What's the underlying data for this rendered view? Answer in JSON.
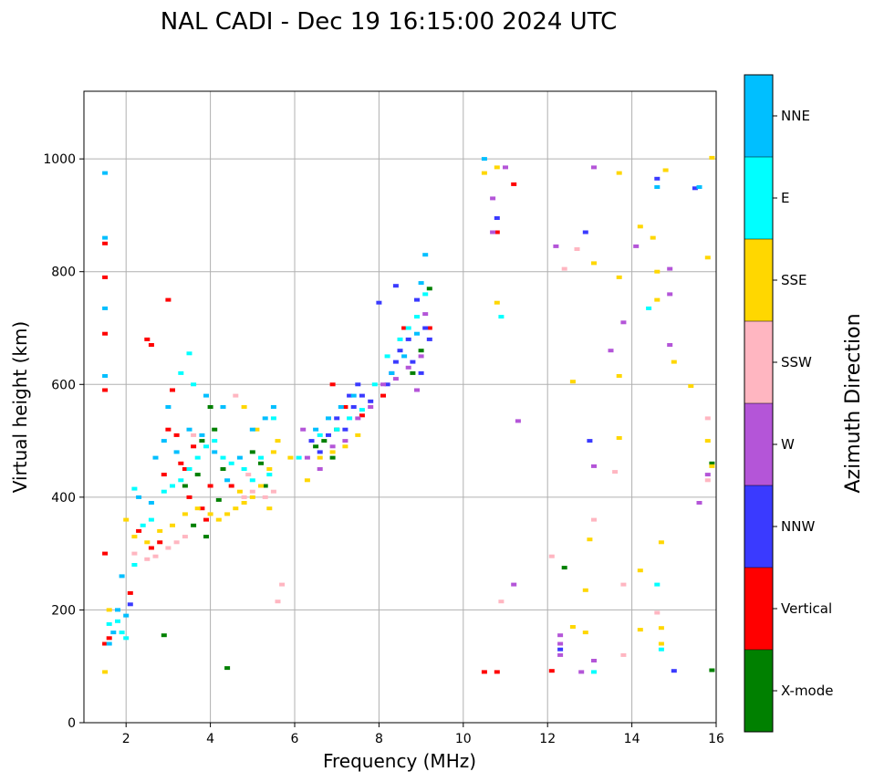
{
  "chart_data": {
    "type": "scatter",
    "title": "NAL CADI - Dec 19 16:15:00 2024 UTC",
    "xlabel": "Frequency (MHz)",
    "ylabel": "Virtual height (km)",
    "xlim": [
      1,
      16
    ],
    "ylim": [
      0,
      1120
    ],
    "xticks": [
      2,
      4,
      6,
      8,
      10,
      12,
      14,
      16
    ],
    "yticks": [
      0,
      200,
      400,
      600,
      800,
      1000
    ],
    "grid": true,
    "colorbar": {
      "title": "Azimuth Direction",
      "categories": [
        {
          "label": "X-mode",
          "color": "#008000"
        },
        {
          "label": "Vertical",
          "color": "#ff0000"
        },
        {
          "label": "NNW",
          "color": "#3a3aff"
        },
        {
          "label": "W",
          "color": "#b455d8"
        },
        {
          "label": "SSW",
          "color": "#ffb6c1"
        },
        {
          "label": "SSE",
          "color": "#ffd700"
        },
        {
          "label": "E",
          "color": "#00ffff"
        },
        {
          "label": "NNE",
          "color": "#00bfff"
        }
      ]
    },
    "series": [
      {
        "name": "X-mode",
        "points": [
          [
            2.9,
            155
          ],
          [
            4.4,
            97
          ],
          [
            3.7,
            440
          ],
          [
            4.1,
            520
          ],
          [
            4.2,
            395
          ],
          [
            3.6,
            350
          ],
          [
            3.9,
            330
          ],
          [
            5.0,
            480
          ],
          [
            5.3,
            420
          ],
          [
            6.5,
            490
          ],
          [
            6.7,
            500
          ],
          [
            7.0,
            520
          ],
          [
            8.8,
            620
          ],
          [
            9.0,
            660
          ],
          [
            9.2,
            770
          ],
          [
            15.9,
            460
          ],
          [
            15.9,
            93
          ],
          [
            12.4,
            275
          ],
          [
            4.0,
            560
          ],
          [
            3.8,
            500
          ],
          [
            4.3,
            450
          ],
          [
            3.4,
            420
          ],
          [
            5.2,
            460
          ],
          [
            6.9,
            470
          ]
        ]
      },
      {
        "name": "Vertical",
        "points": [
          [
            1.5,
            850
          ],
          [
            1.5,
            790
          ],
          [
            1.5,
            690
          ],
          [
            1.5,
            590
          ],
          [
            1.5,
            300
          ],
          [
            1.6,
            150
          ],
          [
            1.5,
            140
          ],
          [
            2.1,
            230
          ],
          [
            2.3,
            340
          ],
          [
            2.6,
            310
          ],
          [
            2.8,
            320
          ],
          [
            3.0,
            520
          ],
          [
            3.1,
            590
          ],
          [
            3.2,
            510
          ],
          [
            3.3,
            460
          ],
          [
            3.4,
            450
          ],
          [
            3.6,
            490
          ],
          [
            3.8,
            380
          ],
          [
            3.9,
            360
          ],
          [
            4.0,
            420
          ],
          [
            2.5,
            680
          ],
          [
            2.6,
            670
          ],
          [
            3.0,
            750
          ],
          [
            2.9,
            440
          ],
          [
            3.5,
            400
          ],
          [
            6.9,
            600
          ],
          [
            7.2,
            560
          ],
          [
            7.6,
            545
          ],
          [
            8.1,
            580
          ],
          [
            8.6,
            700
          ],
          [
            9.2,
            700
          ],
          [
            10.5,
            90
          ],
          [
            10.8,
            90
          ],
          [
            10.8,
            870
          ],
          [
            11.2,
            955
          ],
          [
            12.1,
            92
          ],
          [
            4.5,
            420
          ]
        ]
      },
      {
        "name": "NNW",
        "points": [
          [
            2.1,
            210
          ],
          [
            6.4,
            500
          ],
          [
            6.6,
            480
          ],
          [
            6.8,
            510
          ],
          [
            7.0,
            540
          ],
          [
            7.2,
            520
          ],
          [
            7.4,
            560
          ],
          [
            7.6,
            580
          ],
          [
            7.8,
            570
          ],
          [
            8.2,
            600
          ],
          [
            8.3,
            620
          ],
          [
            8.4,
            640
          ],
          [
            8.5,
            660
          ],
          [
            8.7,
            680
          ],
          [
            8.8,
            640
          ],
          [
            9.0,
            620
          ],
          [
            9.1,
            700
          ],
          [
            9.2,
            680
          ],
          [
            8.4,
            775
          ],
          [
            8.9,
            750
          ],
          [
            8.0,
            745
          ],
          [
            10.8,
            895
          ],
          [
            12.9,
            870
          ],
          [
            13.0,
            500
          ],
          [
            14.6,
            965
          ],
          [
            15.5,
            948
          ],
          [
            15.0,
            92
          ],
          [
            12.3,
            130
          ],
          [
            7.3,
            580
          ],
          [
            7.5,
            600
          ]
        ]
      },
      {
        "name": "W",
        "points": [
          [
            6.3,
            470
          ],
          [
            6.6,
            450
          ],
          [
            6.9,
            490
          ],
          [
            7.2,
            500
          ],
          [
            7.5,
            540
          ],
          [
            7.8,
            560
          ],
          [
            8.1,
            600
          ],
          [
            8.4,
            610
          ],
          [
            8.7,
            630
          ],
          [
            9.0,
            650
          ],
          [
            9.1,
            725
          ],
          [
            8.9,
            590
          ],
          [
            10.7,
            930
          ],
          [
            10.7,
            870
          ],
          [
            11.0,
            985
          ],
          [
            11.3,
            535
          ],
          [
            12.2,
            845
          ],
          [
            12.3,
            120
          ],
          [
            12.3,
            140
          ],
          [
            12.8,
            90
          ],
          [
            13.1,
            110
          ],
          [
            13.1,
            455
          ],
          [
            13.1,
            985
          ],
          [
            13.8,
            710
          ],
          [
            14.1,
            845
          ],
          [
            14.9,
            760
          ],
          [
            14.9,
            670
          ],
          [
            14.9,
            805
          ],
          [
            15.6,
            390
          ],
          [
            15.8,
            440
          ],
          [
            6.2,
            520
          ],
          [
            11.2,
            245
          ],
          [
            12.3,
            155
          ],
          [
            13.5,
            660
          ]
        ]
      },
      {
        "name": "SSW",
        "points": [
          [
            2.2,
            300
          ],
          [
            2.5,
            290
          ],
          [
            2.7,
            295
          ],
          [
            3.0,
            310
          ],
          [
            3.2,
            320
          ],
          [
            3.4,
            330
          ],
          [
            4.8,
            400
          ],
          [
            5.0,
            410
          ],
          [
            5.3,
            400
          ],
          [
            5.5,
            410
          ],
          [
            4.6,
            580
          ],
          [
            5.6,
            215
          ],
          [
            5.7,
            245
          ],
          [
            10.9,
            215
          ],
          [
            12.1,
            295
          ],
          [
            12.4,
            805
          ],
          [
            12.7,
            840
          ],
          [
            13.1,
            360
          ],
          [
            13.6,
            445
          ],
          [
            13.8,
            245
          ],
          [
            13.8,
            120
          ],
          [
            14.6,
            195
          ],
          [
            15.8,
            540
          ],
          [
            15.8,
            430
          ],
          [
            3.6,
            510
          ],
          [
            4.9,
            440
          ]
        ]
      },
      {
        "name": "SSE",
        "points": [
          [
            1.5,
            90
          ],
          [
            1.6,
            200
          ],
          [
            2.0,
            360
          ],
          [
            2.2,
            330
          ],
          [
            2.5,
            320
          ],
          [
            2.8,
            340
          ],
          [
            3.1,
            350
          ],
          [
            3.4,
            370
          ],
          [
            3.7,
            380
          ],
          [
            4.0,
            370
          ],
          [
            4.2,
            360
          ],
          [
            4.4,
            370
          ],
          [
            4.6,
            380
          ],
          [
            4.8,
            390
          ],
          [
            5.0,
            400
          ],
          [
            5.2,
            420
          ],
          [
            5.4,
            450
          ],
          [
            5.5,
            480
          ],
          [
            5.6,
            500
          ],
          [
            5.4,
            380
          ],
          [
            4.8,
            560
          ],
          [
            4.7,
            410
          ],
          [
            6.3,
            430
          ],
          [
            6.6,
            470
          ],
          [
            6.9,
            480
          ],
          [
            7.2,
            490
          ],
          [
            7.5,
            510
          ],
          [
            10.5,
            975
          ],
          [
            10.8,
            985
          ],
          [
            10.8,
            745
          ],
          [
            12.6,
            605
          ],
          [
            12.6,
            170
          ],
          [
            12.9,
            160
          ],
          [
            12.9,
            235
          ],
          [
            13.0,
            325
          ],
          [
            13.1,
            815
          ],
          [
            13.7,
            975
          ],
          [
            13.7,
            790
          ],
          [
            13.7,
            615
          ],
          [
            13.7,
            505
          ],
          [
            14.2,
            880
          ],
          [
            14.5,
            860
          ],
          [
            14.6,
            800
          ],
          [
            14.6,
            750
          ],
          [
            14.7,
            168
          ],
          [
            14.7,
            140
          ],
          [
            14.7,
            320
          ],
          [
            14.8,
            980
          ],
          [
            15.0,
            640
          ],
          [
            15.4,
            597
          ],
          [
            15.8,
            825
          ],
          [
            15.8,
            500
          ],
          [
            15.9,
            455
          ],
          [
            15.9,
            1002
          ],
          [
            14.2,
            165
          ],
          [
            14.2,
            270
          ],
          [
            5.9,
            470
          ],
          [
            5.1,
            520
          ]
        ]
      },
      {
        "name": "E",
        "points": [
          [
            1.6,
            175
          ],
          [
            1.8,
            180
          ],
          [
            1.9,
            160
          ],
          [
            2.0,
            150
          ],
          [
            2.2,
            280
          ],
          [
            2.4,
            350
          ],
          [
            2.6,
            360
          ],
          [
            2.9,
            410
          ],
          [
            3.1,
            420
          ],
          [
            3.3,
            430
          ],
          [
            3.5,
            450
          ],
          [
            3.7,
            470
          ],
          [
            3.9,
            490
          ],
          [
            4.1,
            500
          ],
          [
            4.3,
            470
          ],
          [
            4.5,
            460
          ],
          [
            4.8,
            450
          ],
          [
            5.0,
            430
          ],
          [
            5.2,
            470
          ],
          [
            5.4,
            440
          ],
          [
            5.5,
            540
          ],
          [
            6.1,
            470
          ],
          [
            6.6,
            510
          ],
          [
            7.0,
            520
          ],
          [
            7.3,
            540
          ],
          [
            7.6,
            555
          ],
          [
            7.9,
            600
          ],
          [
            8.2,
            650
          ],
          [
            8.5,
            680
          ],
          [
            8.7,
            700
          ],
          [
            8.9,
            720
          ],
          [
            9.1,
            760
          ],
          [
            10.9,
            720
          ],
          [
            13.1,
            90
          ],
          [
            14.4,
            735
          ],
          [
            14.6,
            245
          ],
          [
            14.7,
            130
          ],
          [
            3.5,
            655
          ],
          [
            3.3,
            620
          ],
          [
            3.6,
            600
          ],
          [
            2.2,
            415
          ]
        ]
      },
      {
        "name": "NNE",
        "points": [
          [
            1.5,
            975
          ],
          [
            1.5,
            860
          ],
          [
            1.5,
            735
          ],
          [
            1.5,
            615
          ],
          [
            1.6,
            140
          ],
          [
            1.7,
            160
          ],
          [
            1.8,
            200
          ],
          [
            2.0,
            190
          ],
          [
            1.9,
            260
          ],
          [
            2.3,
            400
          ],
          [
            2.6,
            390
          ],
          [
            2.9,
            500
          ],
          [
            3.2,
            480
          ],
          [
            3.5,
            520
          ],
          [
            3.8,
            510
          ],
          [
            4.1,
            480
          ],
          [
            4.4,
            430
          ],
          [
            4.7,
            470
          ],
          [
            5.0,
            520
          ],
          [
            5.3,
            540
          ],
          [
            5.5,
            560
          ],
          [
            6.5,
            520
          ],
          [
            6.8,
            540
          ],
          [
            7.1,
            560
          ],
          [
            7.4,
            580
          ],
          [
            8.3,
            620
          ],
          [
            8.6,
            650
          ],
          [
            8.9,
            690
          ],
          [
            9.0,
            780
          ],
          [
            9.1,
            830
          ],
          [
            10.5,
            1000
          ],
          [
            14.6,
            950
          ],
          [
            15.6,
            950
          ],
          [
            4.3,
            560
          ],
          [
            3.9,
            580
          ],
          [
            2.7,
            470
          ],
          [
            3.0,
            560
          ]
        ]
      }
    ]
  }
}
